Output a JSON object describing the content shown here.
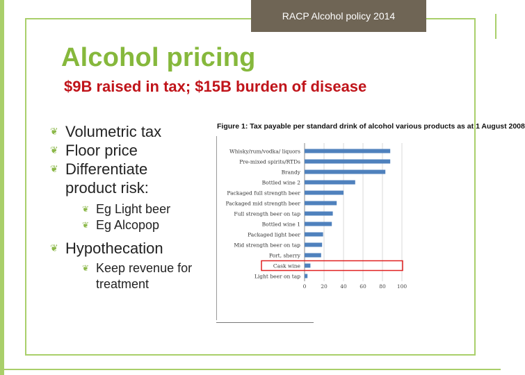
{
  "header": {
    "badge": "RACP Alcohol policy 2014"
  },
  "slide": {
    "title": "Alcohol pricing",
    "subtitle": "$9B raised in tax; $15B burden of disease",
    "bullets": [
      {
        "text": "Volumetric tax"
      },
      {
        "text": "Floor price"
      },
      {
        "text": "Differentiate",
        "continuation": "product risk:"
      },
      {
        "text": "Eg Light beer"
      },
      {
        "text": "Eg Alcopop"
      },
      {
        "text": "Hypothecation"
      },
      {
        "text": "Keep revenue for",
        "continuation": "treatment"
      }
    ]
  },
  "colors": {
    "accent": "#86b83c",
    "subtitle": "#c0141a",
    "bar": "#4f81bd",
    "highlight": "#e02020",
    "badge": "#6f6555"
  },
  "chart_data": {
    "type": "bar",
    "orientation": "horizontal",
    "title": "Figure 1: Tax payable per standard drink of alcohol various products as at 1 August 2008",
    "categories": [
      "Whisky/rum/vodka/ liquors",
      "Pre-mixed spirits/RTDs",
      "Brandy",
      "Bottled wine 2",
      "Packaged full strength beer",
      "Packaged mid strength beer",
      "Full strength beer on tap",
      "Bottled wine 1",
      "Packaged light beer",
      "Mid strength beer on tap",
      "Port, sherry",
      "Cask wine",
      "Light beer on tap"
    ],
    "values": [
      88,
      88,
      83,
      52,
      40,
      33,
      29,
      28,
      19,
      18,
      17,
      6,
      3
    ],
    "xlim": [
      0,
      100
    ],
    "xticks": [
      0,
      20,
      40,
      60,
      80,
      100
    ],
    "grid": true,
    "highlighted_category": "Cask wine"
  }
}
